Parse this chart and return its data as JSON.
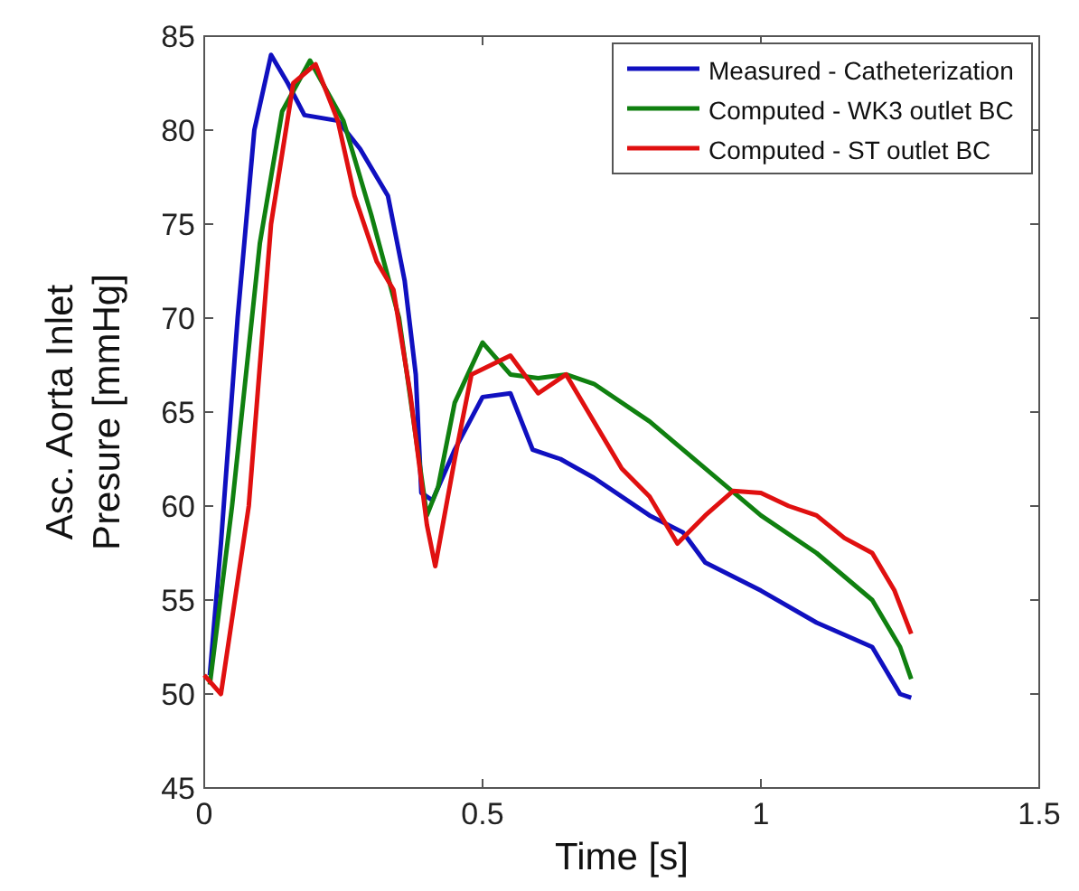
{
  "chart_data": {
    "type": "line",
    "xlabel": "Time [s]",
    "ylabel": "Asc. Aorta Inlet Presure [mmHg]",
    "xlim": [
      0,
      1.5
    ],
    "xticks": [
      0,
      0.5,
      1,
      1.5
    ],
    "ylim": [
      45,
      85
    ],
    "yticks": [
      45,
      50,
      55,
      60,
      65,
      70,
      75,
      80,
      85
    ],
    "grid": false,
    "legend": "top right",
    "line_style": "solid",
    "marker": "none",
    "series": [
      {
        "name": "Measured - Catheterization",
        "color": "#1010c0",
        "x": [
          0.01,
          0.03,
          0.06,
          0.09,
          0.12,
          0.15,
          0.18,
          0.24,
          0.28,
          0.31,
          0.33,
          0.36,
          0.38,
          0.39,
          0.41,
          0.45,
          0.5,
          0.55,
          0.59,
          0.64,
          0.7,
          0.8,
          0.86,
          0.9,
          1.0,
          1.1,
          1.2,
          1.25,
          1.27
        ],
        "values": [
          51,
          58,
          70,
          80,
          84,
          82.5,
          80.8,
          80.5,
          79,
          77.5,
          76.5,
          72,
          67,
          60.7,
          60.3,
          63,
          65.8,
          66,
          63,
          62.5,
          61.5,
          59.5,
          58.6,
          57,
          55.5,
          53.8,
          52.5,
          50,
          49.8
        ]
      },
      {
        "name": "Computed - WK3 outlet BC",
        "color": "#108010",
        "x": [
          0.01,
          0.05,
          0.1,
          0.14,
          0.19,
          0.25,
          0.3,
          0.35,
          0.4,
          0.42,
          0.45,
          0.5,
          0.55,
          0.6,
          0.65,
          0.7,
          0.8,
          0.9,
          1.0,
          1.1,
          1.2,
          1.25,
          1.27
        ],
        "values": [
          50.5,
          60,
          74,
          81,
          83.7,
          80.5,
          75.5,
          70,
          59.5,
          61,
          65.5,
          68.7,
          67,
          66.8,
          67,
          66.5,
          64.5,
          62,
          59.5,
          57.5,
          55,
          52.5,
          50.8
        ]
      },
      {
        "name": "Computed - ST outlet BC",
        "color": "#e01010",
        "x": [
          0,
          0.03,
          0.08,
          0.12,
          0.16,
          0.2,
          0.24,
          0.27,
          0.31,
          0.34,
          0.37,
          0.4,
          0.415,
          0.45,
          0.48,
          0.55,
          0.6,
          0.65,
          0.7,
          0.75,
          0.8,
          0.85,
          0.9,
          0.95,
          1.0,
          1.05,
          1.1,
          1.15,
          1.2,
          1.24,
          1.27
        ],
        "values": [
          51,
          50,
          60,
          75,
          82.5,
          83.5,
          80.5,
          76.5,
          73,
          71.5,
          66,
          59,
          56.8,
          62.5,
          67,
          68,
          66,
          67,
          64.5,
          62,
          60.5,
          58,
          59.5,
          60.8,
          60.7,
          60,
          59.5,
          58.3,
          57.5,
          55.5,
          53.2
        ]
      }
    ]
  }
}
